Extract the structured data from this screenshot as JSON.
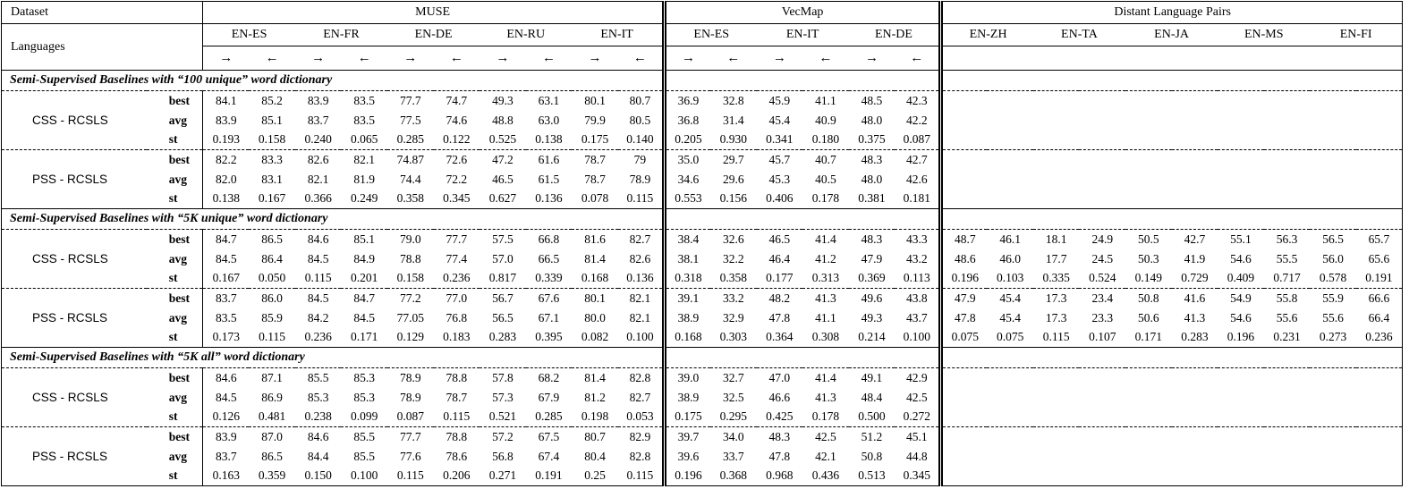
{
  "header": {
    "dataset_label": "Dataset",
    "languages_label": "Languages",
    "arrow_forward": "→",
    "arrow_backward": "←",
    "groups": [
      {
        "id": "muse",
        "name": "MUSE",
        "arrows": true,
        "pairs": [
          "EN-ES",
          "EN-FR",
          "EN-DE",
          "EN-RU",
          "EN-IT"
        ]
      },
      {
        "id": "vecmap",
        "name": "VecMap",
        "arrows": true,
        "pairs": [
          "EN-ES",
          "EN-IT",
          "EN-DE"
        ]
      },
      {
        "id": "distant",
        "name": "Distant Language Pairs",
        "arrows": false,
        "pairs": [
          "EN-ZH",
          "EN-TA",
          "EN-JA",
          "EN-MS",
          "EN-FI"
        ]
      }
    ]
  },
  "stat_labels": [
    "best",
    "avg",
    "st"
  ],
  "sections": [
    {
      "title": "Semi-Supervised Baselines with “100 unique” word dictionary",
      "models": [
        {
          "name": "CSS - RCSLS",
          "stats": {
            "best": {
              "muse": [
                "84.1",
                "85.2",
                "83.9",
                "83.5",
                "77.7",
                "74.7",
                "49.3",
                "63.1",
                "80.1",
                "80.7"
              ],
              "vecmap": [
                "36.9",
                "32.8",
                "45.9",
                "41.1",
                "48.5",
                "42.3"
              ],
              "distant": []
            },
            "avg": {
              "muse": [
                "83.9",
                "85.1",
                "83.7",
                "83.5",
                "77.5",
                "74.6",
                "48.8",
                "63.0",
                "79.9",
                "80.5"
              ],
              "vecmap": [
                "36.8",
                "31.4",
                "45.4",
                "40.9",
                "48.0",
                "42.2"
              ],
              "distant": []
            },
            "st": {
              "muse": [
                "0.193",
                "0.158",
                "0.240",
                "0.065",
                "0.285",
                "0.122",
                "0.525",
                "0.138",
                "0.175",
                "0.140"
              ],
              "vecmap": [
                "0.205",
                "0.930",
                "0.341",
                "0.180",
                "0.375",
                "0.087"
              ],
              "distant": []
            }
          }
        },
        {
          "name": "PSS - RCSLS",
          "stats": {
            "best": {
              "muse": [
                "82.2",
                "83.3",
                "82.6",
                "82.1",
                "74.87",
                "72.6",
                "47.2",
                "61.6",
                "78.7",
                "79"
              ],
              "vecmap": [
                "35.0",
                "29.7",
                "45.7",
                "40.7",
                "48.3",
                "42.7"
              ],
              "distant": []
            },
            "avg": {
              "muse": [
                "82.0",
                "83.1",
                "82.1",
                "81.9",
                "74.4",
                "72.2",
                "46.5",
                "61.5",
                "78.7",
                "78.9"
              ],
              "vecmap": [
                "34.6",
                "29.6",
                "45.3",
                "40.5",
                "48.0",
                "42.6"
              ],
              "distant": []
            },
            "st": {
              "muse": [
                "0.138",
                "0.167",
                "0.366",
                "0.249",
                "0.358",
                "0.345",
                "0.627",
                "0.136",
                "0.078",
                "0.115"
              ],
              "vecmap": [
                "0.553",
                "0.156",
                "0.406",
                "0.178",
                "0.381",
                "0.181"
              ],
              "distant": []
            }
          }
        }
      ]
    },
    {
      "title": "Semi-Supervised Baselines with “5K unique” word dictionary",
      "models": [
        {
          "name": "CSS - RCSLS",
          "stats": {
            "best": {
              "muse": [
                "84.7",
                "86.5",
                "84.6",
                "85.1",
                "79.0",
                "77.7",
                "57.5",
                "66.8",
                "81.6",
                "82.7"
              ],
              "vecmap": [
                "38.4",
                "32.6",
                "46.5",
                "41.4",
                "48.3",
                "43.3"
              ],
              "distant": [
                "48.7",
                "46.1",
                "18.1",
                "24.9",
                "50.5",
                "42.7",
                "55.1",
                "56.3",
                "56.5",
                "65.7"
              ]
            },
            "avg": {
              "muse": [
                "84.5",
                "86.4",
                "84.5",
                "84.9",
                "78.8",
                "77.4",
                "57.0",
                "66.5",
                "81.4",
                "82.6"
              ],
              "vecmap": [
                "38.1",
                "32.2",
                "46.4",
                "41.2",
                "47.9",
                "43.2"
              ],
              "distant": [
                "48.6",
                "46.0",
                "17.7",
                "24.5",
                "50.3",
                "41.9",
                "54.6",
                "55.5",
                "56.0",
                "65.6"
              ]
            },
            "st": {
              "muse": [
                "0.167",
                "0.050",
                "0.115",
                "0.201",
                "0.158",
                "0.236",
                "0.817",
                "0.339",
                "0.168",
                "0.136"
              ],
              "vecmap": [
                "0.318",
                "0.358",
                "0.177",
                "0.313",
                "0.369",
                "0.113"
              ],
              "distant": [
                "0.196",
                "0.103",
                "0.335",
                "0.524",
                "0.149",
                "0.729",
                "0.409",
                "0.717",
                "0.578",
                "0.191"
              ]
            }
          }
        },
        {
          "name": "PSS - RCSLS",
          "stats": {
            "best": {
              "muse": [
                "83.7",
                "86.0",
                "84.5",
                "84.7",
                "77.2",
                "77.0",
                "56.7",
                "67.6",
                "80.1",
                "82.1"
              ],
              "vecmap": [
                "39.1",
                "33.2",
                "48.2",
                "41.3",
                "49.6",
                "43.8"
              ],
              "distant": [
                "47.9",
                "45.4",
                "17.3",
                "23.4",
                "50.8",
                "41.6",
                "54.9",
                "55.8",
                "55.9",
                "66.6"
              ]
            },
            "avg": {
              "muse": [
                "83.5",
                "85.9",
                "84.2",
                "84.5",
                "77.05",
                "76.8",
                "56.5",
                "67.1",
                "80.0",
                "82.1"
              ],
              "vecmap": [
                "38.9",
                "32.9",
                "47.8",
                "41.1",
                "49.3",
                "43.7"
              ],
              "distant": [
                "47.8",
                "45.4",
                "17.3",
                "23.3",
                "50.6",
                "41.3",
                "54.6",
                "55.6",
                "55.6",
                "66.4"
              ]
            },
            "st": {
              "muse": [
                "0.173",
                "0.115",
                "0.236",
                "0.171",
                "0.129",
                "0.183",
                "0.283",
                "0.395",
                "0.082",
                "0.100"
              ],
              "vecmap": [
                "0.168",
                "0.303",
                "0.364",
                "0.308",
                "0.214",
                "0.100"
              ],
              "distant": [
                "0.075",
                "0.075",
                "0.115",
                "0.107",
                "0.171",
                "0.283",
                "0.196",
                "0.231",
                "0.273",
                "0.236"
              ]
            }
          }
        }
      ]
    },
    {
      "title": "Semi-Supervised Baselines with “5K all” word dictionary",
      "models": [
        {
          "name": "CSS - RCSLS",
          "stats": {
            "best": {
              "muse": [
                "84.6",
                "87.1",
                "85.5",
                "85.3",
                "78.9",
                "78.8",
                "57.8",
                "68.2",
                "81.4",
                "82.8"
              ],
              "vecmap": [
                "39.0",
                "32.7",
                "47.0",
                "41.4",
                "49.1",
                "42.9"
              ],
              "distant": []
            },
            "avg": {
              "muse": [
                "84.5",
                "86.9",
                "85.3",
                "85.3",
                "78.9",
                "78.7",
                "57.3",
                "67.9",
                "81.2",
                "82.7"
              ],
              "vecmap": [
                "38.9",
                "32.5",
                "46.6",
                "41.3",
                "48.4",
                "42.5"
              ],
              "distant": []
            },
            "st": {
              "muse": [
                "0.126",
                "0.481",
                "0.238",
                "0.099",
                "0.087",
                "0.115",
                "0.521",
                "0.285",
                "0.198",
                "0.053"
              ],
              "vecmap": [
                "0.175",
                "0.295",
                "0.425",
                "0.178",
                "0.500",
                "0.272"
              ],
              "distant": []
            }
          }
        },
        {
          "name": "PSS - RCSLS",
          "stats": {
            "best": {
              "muse": [
                "83.9",
                "87.0",
                "84.6",
                "85.5",
                "77.7",
                "78.8",
                "57.2",
                "67.5",
                "80.7",
                "82.9"
              ],
              "vecmap": [
                "39.7",
                "34.0",
                "48.3",
                "42.5",
                "51.2",
                "45.1"
              ],
              "distant": []
            },
            "avg": {
              "muse": [
                "83.7",
                "86.5",
                "84.4",
                "85.5",
                "77.6",
                "78.6",
                "56.8",
                "67.4",
                "80.4",
                "82.8"
              ],
              "vecmap": [
                "39.6",
                "33.7",
                "47.8",
                "42.1",
                "50.8",
                "44.8"
              ],
              "distant": []
            },
            "st": {
              "muse": [
                "0.163",
                "0.359",
                "0.150",
                "0.100",
                "0.115",
                "0.206",
                "0.271",
                "0.191",
                "0.25",
                "0.115"
              ],
              "vecmap": [
                "0.196",
                "0.368",
                "0.968",
                "0.436",
                "0.513",
                "0.345"
              ],
              "distant": []
            }
          }
        }
      ]
    }
  ]
}
